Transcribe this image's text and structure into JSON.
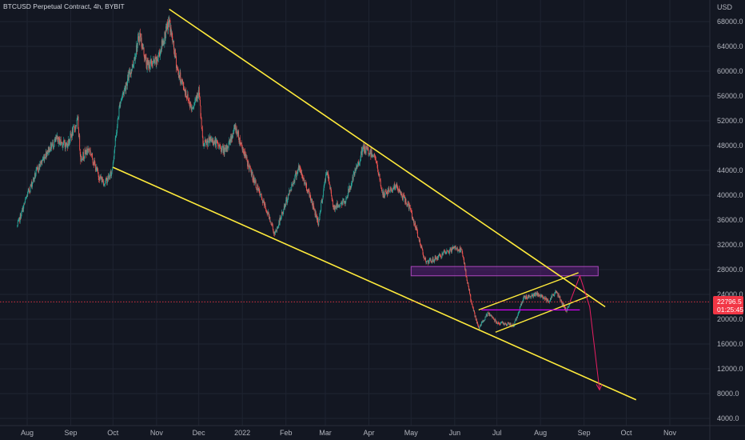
{
  "chart_data": {
    "type": "candlestick",
    "title": "BTCUSD Perpetual Contract, 4h, BYBIT",
    "currency_label": "USD",
    "y_ticks": [
      68000.0,
      64000.0,
      60000.0,
      56000.0,
      52000.0,
      48000.0,
      44000.0,
      40000.0,
      36000.0,
      32000.0,
      28000.0,
      24000.0,
      20000.0,
      16000.0,
      12000.0,
      8000.0,
      4000.0
    ],
    "x_ticks": [
      "Aug",
      "Sep",
      "Oct",
      "Nov",
      "Dec",
      "2022",
      "Feb",
      "Mar",
      "Apr",
      "May",
      "Jun",
      "Jul",
      "Aug",
      "Sep",
      "Oct",
      "Nov"
    ],
    "x_tick_dates": [
      "2021-08-01",
      "2021-09-01",
      "2021-10-01",
      "2021-11-01",
      "2021-12-01",
      "2022-01-01",
      "2022-02-01",
      "2022-03-01",
      "2022-04-01",
      "2022-05-01",
      "2022-06-01",
      "2022-07-01",
      "2022-08-01",
      "2022-09-01",
      "2022-10-01",
      "2022-11-01"
    ],
    "last_price": "22796.5",
    "countdown": "01:25:45",
    "price_path": [
      [
        "2021-07-25",
        35000
      ],
      [
        "2021-08-01",
        40000
      ],
      [
        "2021-08-08",
        44000
      ],
      [
        "2021-08-15",
        47000
      ],
      [
        "2021-08-22",
        49000
      ],
      [
        "2021-08-29",
        48000
      ],
      [
        "2021-09-06",
        52000
      ],
      [
        "2021-09-08",
        46000
      ],
      [
        "2021-09-14",
        47500
      ],
      [
        "2021-09-21",
        43000
      ],
      [
        "2021-09-25",
        42000
      ],
      [
        "2021-09-30",
        43500
      ],
      [
        "2021-10-06",
        55000
      ],
      [
        "2021-10-15",
        61000
      ],
      [
        "2021-10-20",
        66000
      ],
      [
        "2021-10-25",
        61000
      ],
      [
        "2021-11-01",
        61500
      ],
      [
        "2021-11-10",
        68000
      ],
      [
        "2021-11-16",
        60000
      ],
      [
        "2021-11-26",
        54000
      ],
      [
        "2021-12-01",
        57000
      ],
      [
        "2021-12-04",
        48000
      ],
      [
        "2021-12-10",
        49000
      ],
      [
        "2021-12-20",
        47000
      ],
      [
        "2021-12-27",
        51000
      ],
      [
        "2022-01-05",
        45000
      ],
      [
        "2022-01-10",
        42000
      ],
      [
        "2022-01-21",
        36000
      ],
      [
        "2022-01-24",
        33500
      ],
      [
        "2022-02-05",
        41500
      ],
      [
        "2022-02-10",
        44500
      ],
      [
        "2022-02-18",
        40000
      ],
      [
        "2022-02-24",
        35500
      ],
      [
        "2022-03-02",
        44000
      ],
      [
        "2022-03-07",
        38000
      ],
      [
        "2022-03-15",
        39000
      ],
      [
        "2022-03-28",
        47500
      ],
      [
        "2022-04-05",
        46500
      ],
      [
        "2022-04-11",
        40000
      ],
      [
        "2022-04-20",
        41500
      ],
      [
        "2022-04-30",
        38000
      ],
      [
        "2022-05-09",
        31000
      ],
      [
        "2022-05-12",
        29000
      ],
      [
        "2022-05-20",
        30000
      ],
      [
        "2022-06-01",
        31500
      ],
      [
        "2022-06-06",
        31000
      ],
      [
        "2022-06-13",
        22500
      ],
      [
        "2022-06-18",
        18500
      ],
      [
        "2022-06-25",
        21000
      ],
      [
        "2022-07-01",
        19500
      ],
      [
        "2022-07-13",
        19000
      ],
      [
        "2022-07-20",
        23500
      ],
      [
        "2022-07-30",
        24000
      ],
      [
        "2022-08-07",
        23000
      ],
      [
        "2022-08-12",
        24500
      ],
      [
        "2022-08-19",
        21500
      ],
      [
        "2022-08-20",
        21500
      ],
      [
        "2022-08-22",
        22800
      ]
    ],
    "trendlines": [
      {
        "name": "upper",
        "from": [
          "2021-11-10",
          70000
        ],
        "to": [
          "2022-09-16",
          22000
        ]
      },
      {
        "name": "lower",
        "from": [
          "2021-10-01",
          44500
        ],
        "to": [
          "2022-10-08",
          7000
        ]
      }
    ],
    "channel": {
      "upper": {
        "from": [
          "2022-06-18",
          21500
        ],
        "to": [
          "2022-08-28",
          27500
        ]
      },
      "lower": {
        "from": [
          "2022-06-30",
          17900
        ],
        "to": [
          "2022-09-04",
          23700
        ]
      }
    },
    "zones": [
      {
        "name": "resistance",
        "from_date": "2022-05-01",
        "to_date": "2022-09-11",
        "low": 27000,
        "high": 28500
      }
    ],
    "levels": [
      {
        "name": "support",
        "from_date": "2022-06-20",
        "to_date": "2022-08-29",
        "price": 21500
      },
      {
        "name": "current",
        "price": 22796.5
      }
    ],
    "projection": [
      [
        "2022-08-22",
        22800
      ],
      [
        "2022-08-29",
        27000
      ],
      [
        "2022-09-05",
        22000
      ],
      [
        "2022-09-12",
        8600
      ]
    ],
    "colors": {
      "background": "#131722",
      "grid": "#1f2431",
      "axis_text": "#b2b5be",
      "up": "#26a69a",
      "down": "#ef5350",
      "trendline": "#ffeb3b",
      "zone_fill": "#7b1fa2",
      "zone_stroke": "#ab47bc",
      "support": "#d500f9",
      "projection": "#e91e63",
      "badge": "#f23645",
      "current_line": "#f23645"
    }
  }
}
